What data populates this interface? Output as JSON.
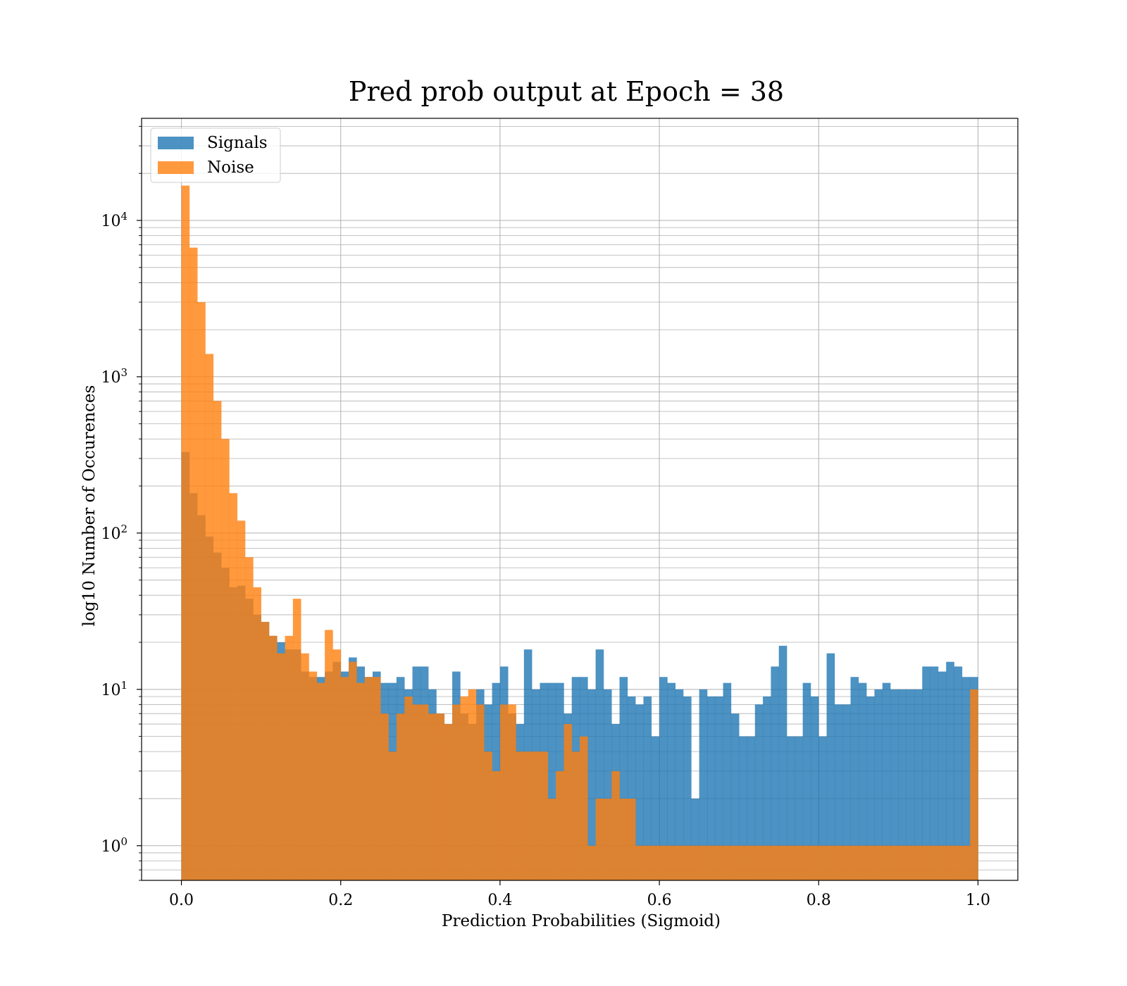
{
  "chart_data": {
    "type": "histogram",
    "title": "Pred prob output at Epoch = 38",
    "xlabel": "Prediction Probabilities (Sigmoid)",
    "ylabel": "log10 Number of Occurences",
    "x_scale": "linear",
    "y_scale": "log",
    "xlim": [
      -0.05,
      1.05
    ],
    "ylim": [
      0.6,
      45000
    ],
    "x_ticks": [
      0.0,
      0.2,
      0.4,
      0.6,
      0.8,
      1.0
    ],
    "x_tick_labels": [
      "0.0",
      "0.2",
      "0.4",
      "0.6",
      "0.8",
      "1.0"
    ],
    "y_ticks": [
      1,
      10,
      100,
      1000,
      10000
    ],
    "y_tick_labels": [
      {
        "base": "10",
        "exp": "0"
      },
      {
        "base": "10",
        "exp": "1"
      },
      {
        "base": "10",
        "exp": "2"
      },
      {
        "base": "10",
        "exp": "3"
      },
      {
        "base": "10",
        "exp": "4"
      }
    ],
    "grid": true,
    "grid_minor_y": true,
    "legend_position": "upper-left",
    "bins": 100,
    "bin_range": [
      0.0,
      1.0
    ],
    "series": [
      {
        "name": "Signals",
        "color": "#1f77b4",
        "opacity": 0.8,
        "values": [
          330,
          180,
          130,
          95,
          75,
          60,
          45,
          46,
          38,
          30,
          27,
          22,
          20,
          18,
          18,
          13,
          12,
          12,
          13,
          15,
          13,
          16,
          14,
          12,
          13,
          11,
          11,
          12,
          10,
          14,
          14,
          10,
          7,
          6,
          13,
          7,
          6,
          10,
          8,
          11,
          14,
          7,
          6,
          18,
          10,
          11,
          11,
          11,
          7,
          12,
          12,
          10,
          18,
          10,
          6,
          12,
          9,
          8,
          9,
          5,
          12,
          11,
          10,
          9,
          2,
          10,
          9,
          9,
          11,
          7,
          5,
          5,
          8,
          9,
          14,
          19,
          5,
          5,
          11,
          9,
          5,
          17,
          8,
          8,
          12,
          11,
          9,
          10,
          11,
          10,
          10,
          10,
          10,
          14,
          14,
          13,
          15,
          14,
          12,
          12
        ]
      },
      {
        "name": "Noise",
        "color": "#ff7f0e",
        "opacity": 0.8,
        "values": [
          16700,
          6700,
          3000,
          1400,
          700,
          400,
          180,
          120,
          70,
          45,
          27,
          22,
          17,
          22,
          38,
          17,
          13,
          11,
          24,
          18,
          12,
          15,
          11,
          12,
          12,
          7,
          4,
          7,
          9,
          8,
          8,
          7,
          7,
          6,
          8,
          9,
          10,
          8,
          4,
          3,
          8,
          8,
          4,
          4,
          4,
          4,
          2,
          3,
          6,
          4,
          5,
          1,
          2,
          2,
          3,
          2,
          2,
          1,
          1,
          1,
          1,
          1,
          1,
          1,
          1,
          1,
          1,
          1,
          1,
          1,
          1,
          1,
          1,
          1,
          1,
          1,
          1,
          1,
          1,
          1,
          1,
          1,
          1,
          1,
          1,
          1,
          1,
          1,
          1,
          1,
          1,
          1,
          1,
          1,
          1,
          1,
          1,
          1,
          1,
          10
        ]
      }
    ]
  }
}
